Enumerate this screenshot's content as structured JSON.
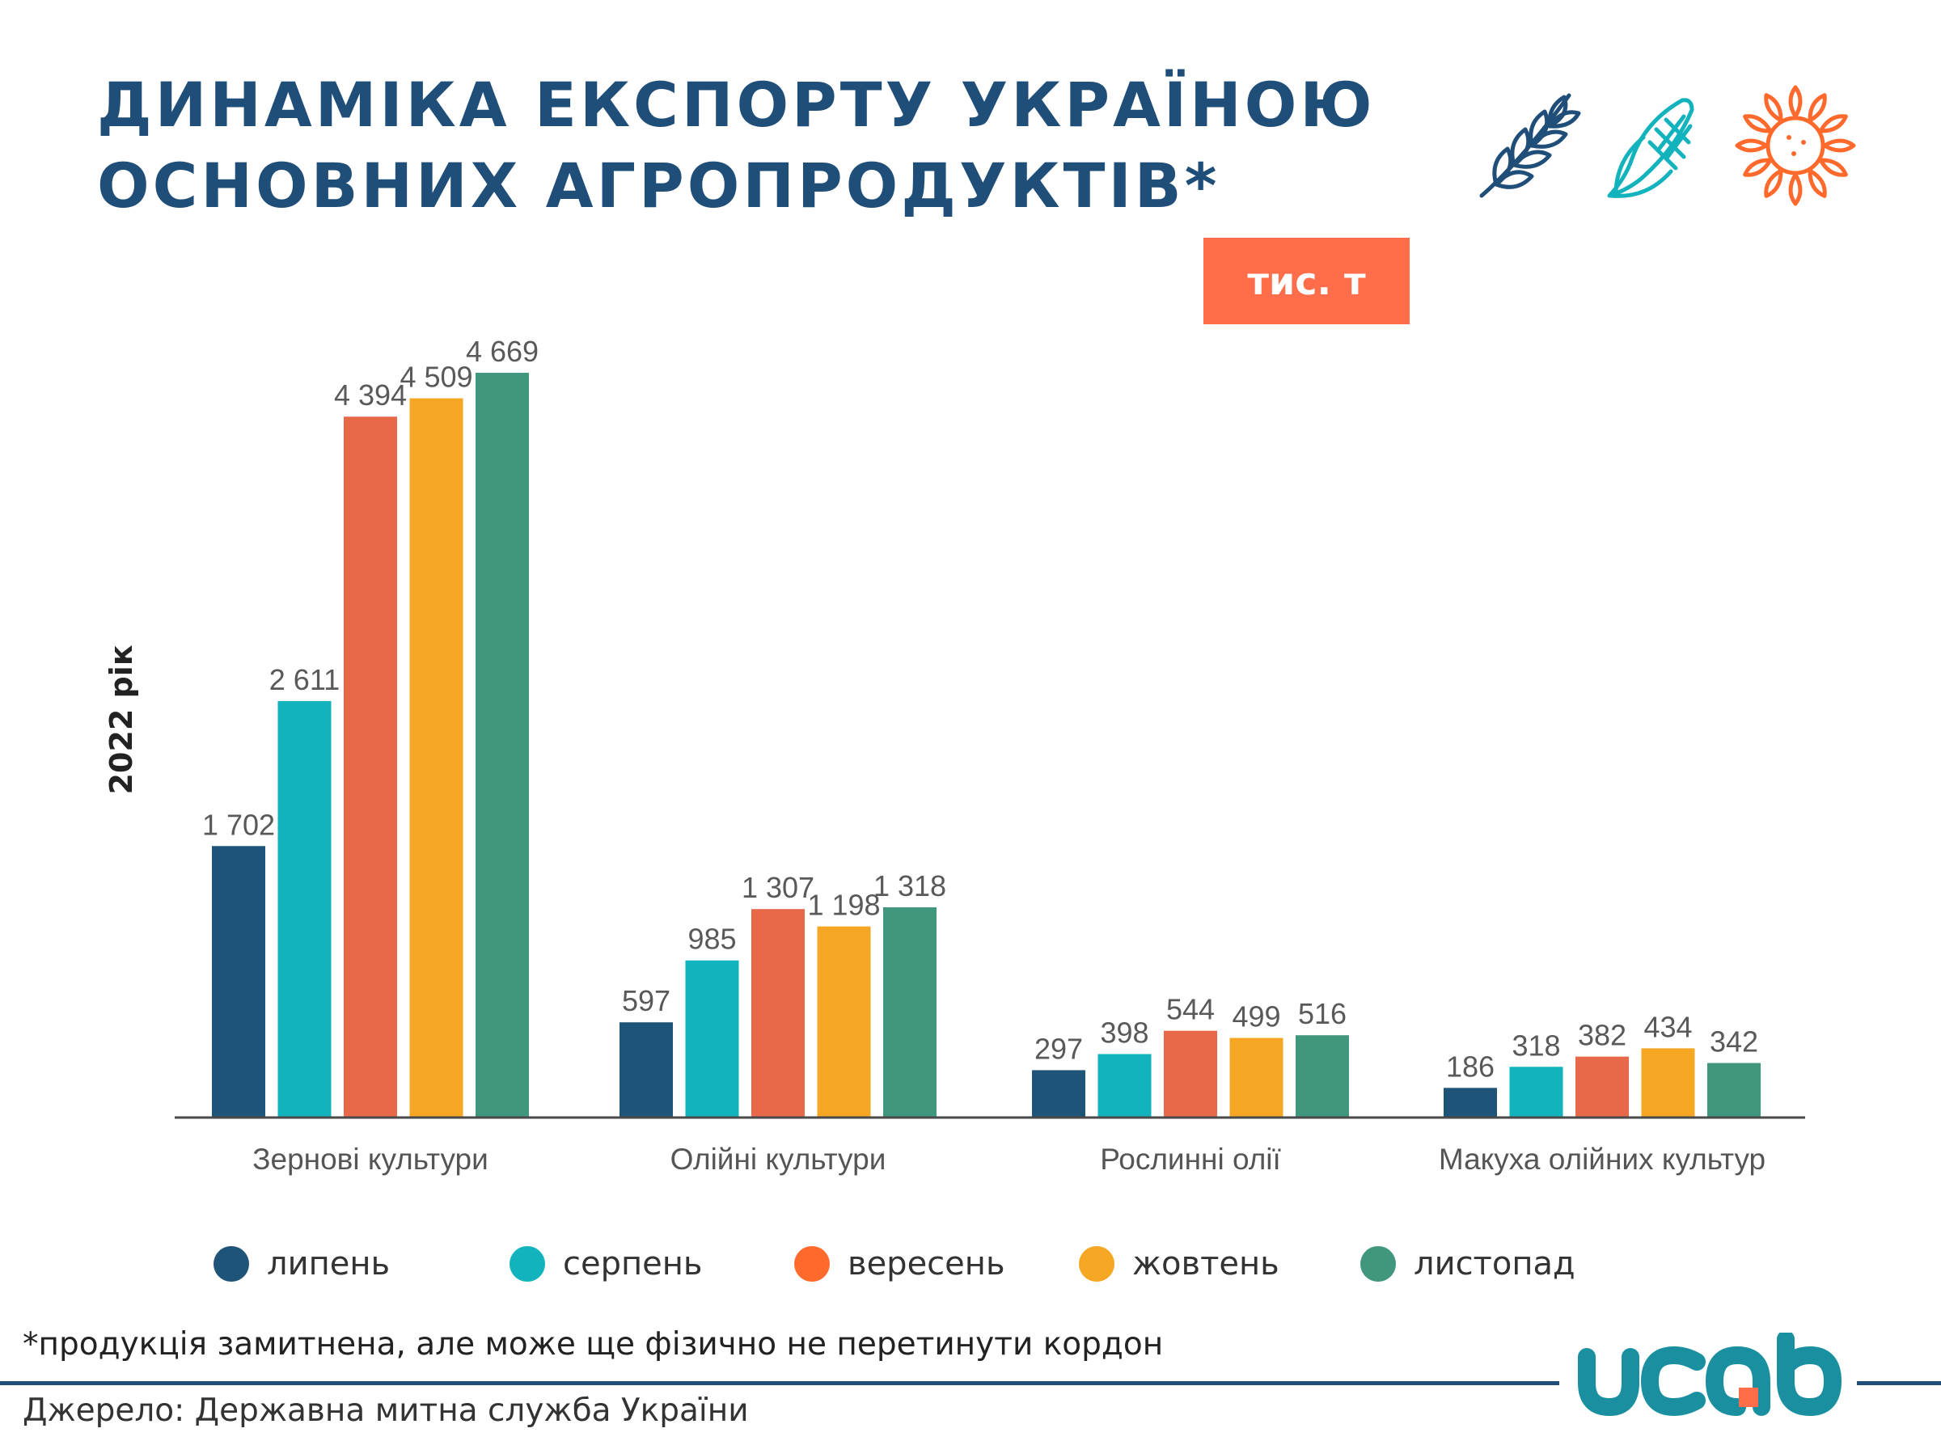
{
  "title": {
    "line1": "ДИНАМІКА ЕКСПОРТУ УКРАЇНОЮ",
    "line2": "ОСНОВНИХ АГРОПРОДУКТІВ*"
  },
  "unit_badge": "тис. т",
  "year_label": "2022 рік",
  "icons": [
    "wheat-icon",
    "corn-icon",
    "sunflower-icon"
  ],
  "colors": {
    "title": "#1f4e79",
    "badge": "#ff6d4a",
    "axis": "#4a4a4a",
    "value_labels": "#595959",
    "logo": "#1a8fa0",
    "logo_accent": "#ff6d4a"
  },
  "chart_data": {
    "type": "bar",
    "categories": [
      "Зернові культури",
      "Олійні культури",
      "Рослинні олії",
      "Макуха олійних культур"
    ],
    "series": [
      {
        "name": "липень",
        "color": "#1f5479",
        "values": [
          1702,
          597,
          297,
          186
        ],
        "labels": [
          "1 702",
          "597",
          "297",
          "186"
        ]
      },
      {
        "name": "серпень",
        "color": "#12b3bd",
        "values": [
          2611,
          985,
          398,
          318
        ],
        "labels": [
          "2 611",
          "985",
          "398",
          "318"
        ]
      },
      {
        "name": "вересень",
        "color": "#e8684a",
        "values": [
          4394,
          1307,
          544,
          382
        ],
        "labels": [
          "4 394",
          "1 307",
          "544",
          "382"
        ]
      },
      {
        "name": "жовтень",
        "color": "#f5a623",
        "values": [
          4509,
          1198,
          499,
          434
        ],
        "labels": [
          "4 509",
          "1 198",
          "499",
          "434"
        ]
      },
      {
        "name": "листопад",
        "color": "#41967e",
        "values": [
          4669,
          1318,
          516,
          342
        ],
        "labels": [
          "4 669",
          "1 318",
          "516",
          "342"
        ]
      }
    ],
    "legend": {
      "position": "bottom"
    },
    "ylim": [
      0,
      4669
    ],
    "grid": false
  },
  "legend": {
    "items": [
      {
        "label": "липень",
        "color": "#1f5479"
      },
      {
        "label": "серпень",
        "color": "#12b3bd"
      },
      {
        "label": "вересень",
        "color": "#ff6a2c"
      },
      {
        "label": "жовтень",
        "color": "#f5a623"
      },
      {
        "label": "листопад",
        "color": "#41967e"
      }
    ]
  },
  "footnote": "*продукція замитнена, але може ще фізично не перетинути кордон",
  "source": "Джерело: Державна митна служба України",
  "logo": {
    "text": "ucab"
  }
}
